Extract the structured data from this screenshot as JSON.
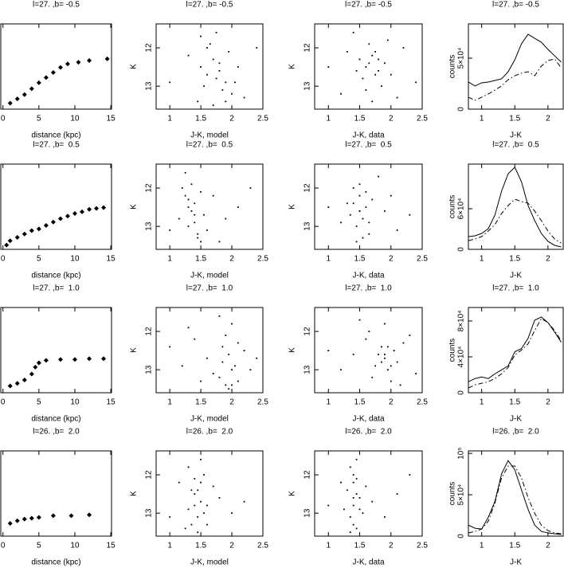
{
  "chart_data": [
    {
      "type": "scatter",
      "marker": "diamond",
      "title": "l=27. ,b= -0.5",
      "xlabel": "distance (kpc)",
      "xlim": [
        -0.3,
        15.1
      ],
      "xticks": [
        0,
        5,
        10,
        15
      ],
      "ylim": [
        0,
        1
      ],
      "x": [
        1,
        2,
        3,
        4,
        5,
        6,
        7,
        8,
        9,
        10.5,
        12,
        14.5
      ],
      "values": [
        0.07,
        0.12,
        0.17,
        0.24,
        0.31,
        0.37,
        0.43,
        0.49,
        0.53,
        0.55,
        0.57,
        0.59
      ]
    },
    {
      "type": "scatter",
      "marker": "point",
      "title": "l=27. ,b= -0.5",
      "xlabel": "J-K, model",
      "ylabel": "K",
      "xlim": [
        0.78,
        2.5
      ],
      "xticks": [
        1,
        1.5,
        2,
        2.5
      ],
      "ylim": [
        11.375,
        13.6
      ],
      "y_inverted": true,
      "yticks": [
        12,
        13
      ],
      "x": [
        1.5,
        1.6,
        1.7,
        1.8,
        1.9,
        2.0,
        1.45,
        1.65,
        1.75,
        1.85,
        2.1,
        1.3,
        1.55,
        1.95,
        2.2,
        1.7,
        1.8,
        1.6,
        1.9,
        1.0,
        2.4,
        1.75,
        1.5,
        2.05
      ],
      "values": [
        11.7,
        12.0,
        12.3,
        12.6,
        12.9,
        13.2,
        13.4,
        11.9,
        12.8,
        13.1,
        12.5,
        12.2,
        13.0,
        12.1,
        13.3,
        13.5,
        12.4,
        12.7,
        13.4,
        12.9,
        12.0,
        11.6,
        12.5,
        12.9
      ]
    },
    {
      "type": "scatter",
      "marker": "point",
      "title": "l=27. ,b= -0.5",
      "xlabel": "J-K, data",
      "ylabel": "K",
      "xlim": [
        0.78,
        2.5
      ],
      "xticks": [
        1,
        1.5,
        2,
        2.5
      ],
      "ylim": [
        11.375,
        13.6
      ],
      "y_inverted": true,
      "yticks": [
        12,
        13
      ],
      "x": [
        1.5,
        1.6,
        1.7,
        1.8,
        1.9,
        1.55,
        1.65,
        1.75,
        1.85,
        2.0,
        1.2,
        1.4,
        2.2,
        1.7,
        1.6,
        1.8,
        1.0,
        2.4,
        1.95,
        1.45,
        1.75,
        1.65,
        2.1,
        1.3
      ],
      "values": [
        12.3,
        12.5,
        12.2,
        12.6,
        12.4,
        12.8,
        11.9,
        12.1,
        13.0,
        12.7,
        13.2,
        11.6,
        12.0,
        13.4,
        13.1,
        12.3,
        12.5,
        12.9,
        11.8,
        12.6,
        12.7,
        12.4,
        13.3,
        12.1
      ]
    },
    {
      "type": "line",
      "title": "l=27. ,b= -0.5",
      "xlabel": "J-K",
      "ylabel": "counts",
      "xlim": [
        0.8,
        2.23
      ],
      "xticks": [
        1,
        1.5,
        2
      ],
      "ylim": [
        0,
        83600
      ],
      "yticks": [
        0,
        {
          "value": 50000,
          "label": "5×10⁴"
        }
      ],
      "x": [
        0.8,
        0.9,
        1.0,
        1.1,
        1.2,
        1.3,
        1.4,
        1.5,
        1.6,
        1.7,
        1.8,
        1.9,
        2.0,
        2.1,
        2.2
      ],
      "series": [
        {
          "style": "solid",
          "color": "#000000",
          "values": [
            26600,
            22700,
            25800,
            26600,
            28100,
            29700,
            36700,
            48400,
            64100,
            73400,
            69500,
            65600,
            58600,
            52300,
            46100
          ]
        },
        {
          "style": "dashdot",
          "color": "#000000",
          "values": [
            11700,
            8600,
            11700,
            14800,
            18800,
            22700,
            28900,
            32800,
            35200,
            36700,
            32800,
            42200,
            47700,
            49200,
            40600
          ]
        }
      ]
    },
    {
      "type": "scatter",
      "marker": "diamond",
      "title": "l=27. ,b=  0.5",
      "xlabel": "distance (kpc)",
      "xlim": [
        -0.3,
        15.1
      ],
      "xticks": [
        0,
        5,
        10,
        15
      ],
      "ylim": [
        0,
        1
      ],
      "x": [
        0.5,
        1,
        2,
        3,
        4,
        5,
        6,
        7,
        8,
        9,
        10,
        11,
        12,
        13,
        14
      ],
      "values": [
        0.05,
        0.1,
        0.14,
        0.18,
        0.22,
        0.24,
        0.28,
        0.32,
        0.36,
        0.39,
        0.42,
        0.44,
        0.47,
        0.48,
        0.49
      ]
    },
    {
      "type": "scatter",
      "marker": "point",
      "title": "l=27. ,b=  0.5",
      "xlabel": "J-K, model",
      "ylabel": "K",
      "xlim": [
        0.78,
        2.5
      ],
      "xticks": [
        1,
        1.5,
        2,
        2.5
      ],
      "ylim": [
        11.375,
        13.6
      ],
      "y_inverted": true,
      "yticks": [
        12,
        13
      ],
      "x": [
        1.2,
        1.3,
        1.35,
        1.4,
        1.45,
        1.5,
        1.25,
        1.3,
        1.4,
        1.55,
        1.6,
        1.7,
        1.9,
        2.1,
        1.15,
        1.35,
        1.45,
        1.3,
        1.5,
        1.8,
        2.3,
        1.0,
        1.4,
        1.25
      ],
      "values": [
        12.0,
        12.3,
        12.6,
        12.9,
        13.2,
        13.4,
        11.6,
        13.0,
        12.4,
        12.7,
        13.1,
        12.2,
        12.8,
        12.5,
        12.8,
        11.9,
        13.3,
        12.5,
        12.1,
        13.4,
        12.0,
        13.1,
        12.7,
        12.2
      ]
    },
    {
      "type": "scatter",
      "marker": "point",
      "title": "l=27. ,b=  0.5",
      "xlabel": "J-K, data",
      "ylabel": "K",
      "xlim": [
        0.78,
        2.5
      ],
      "xticks": [
        1,
        1.5,
        2,
        2.5
      ],
      "ylim": [
        11.375,
        13.6
      ],
      "y_inverted": true,
      "yticks": [
        12,
        13
      ],
      "x": [
        1.4,
        1.5,
        1.55,
        1.6,
        1.45,
        1.5,
        1.65,
        1.35,
        1.7,
        1.9,
        2.1,
        1.2,
        1.55,
        1.5,
        1.6,
        1.0,
        2.3,
        1.45,
        1.8,
        1.4,
        1.5,
        1.65,
        2.0,
        1.3
      ],
      "values": [
        12.4,
        12.6,
        12.8,
        12.5,
        13.0,
        12.2,
        12.9,
        12.7,
        12.3,
        12.6,
        13.1,
        12.9,
        13.3,
        11.9,
        12.1,
        12.5,
        12.7,
        13.4,
        11.7,
        12.0,
        12.6,
        13.2,
        12.2,
        12.4
      ]
    },
    {
      "type": "line",
      "title": "l=27. ,b=  0.5",
      "xlabel": "J-K",
      "ylabel": "counts",
      "xlim": [
        0.8,
        2.23
      ],
      "xticks": [
        1,
        1.5,
        2
      ],
      "ylim": [
        0,
        125900
      ],
      "yticks": [
        0,
        {
          "value": 60000,
          "label": "6×10⁴"
        }
      ],
      "x": [
        0.8,
        0.9,
        1.0,
        1.1,
        1.2,
        1.3,
        1.4,
        1.5,
        1.6,
        1.7,
        1.8,
        1.9,
        2.0,
        2.1,
        2.2
      ],
      "series": [
        {
          "style": "solid",
          "color": "#000000",
          "values": [
            18800,
            20000,
            23500,
            30600,
            50600,
            85900,
            111800,
            121200,
            100000,
            64700,
            42400,
            23500,
            11800,
            5900,
            3500
          ]
        },
        {
          "style": "dashdot",
          "color": "#000000",
          "values": [
            12900,
            15300,
            18800,
            27100,
            36500,
            52900,
            64700,
            74100,
            70600,
            68200,
            56500,
            42400,
            27100,
            15300,
            9400
          ]
        }
      ]
    },
    {
      "type": "scatter",
      "marker": "diamond",
      "title": "l=27. ,b=  1.0",
      "xlabel": "distance (kpc)",
      "xlim": [
        -0.3,
        15.1
      ],
      "xticks": [
        0,
        5,
        10,
        15
      ],
      "ylim": [
        0,
        1
      ],
      "x": [
        1,
        2,
        3,
        4,
        4.5,
        5,
        6,
        8,
        10,
        12,
        14
      ],
      "values": [
        0.08,
        0.11,
        0.15,
        0.22,
        0.3,
        0.35,
        0.38,
        0.39,
        0.39,
        0.4,
        0.4
      ]
    },
    {
      "type": "scatter",
      "marker": "point",
      "title": "l=27. ,b=  1.0",
      "xlabel": "J-K, model",
      "ylabel": "K",
      "xlim": [
        0.78,
        2.5
      ],
      "xticks": [
        1,
        1.5,
        2,
        2.5
      ],
      "ylim": [
        11.375,
        13.6
      ],
      "y_inverted": true,
      "yticks": [
        12,
        13
      ],
      "x": [
        1.8,
        1.9,
        2.0,
        2.1,
        1.85,
        1.95,
        2.05,
        1.7,
        2.2,
        1.6,
        1.4,
        1.2,
        1.0,
        2.3,
        1.9,
        2.0,
        1.8,
        1.5,
        2.1,
        1.95,
        1.85,
        2.4,
        1.3,
        2.0
      ],
      "values": [
        13.2,
        13.4,
        13.0,
        13.3,
        12.8,
        12.6,
        12.9,
        13.1,
        12.5,
        12.7,
        12.2,
        12.9,
        12.4,
        13.0,
        12.1,
        11.8,
        11.6,
        13.3,
        12.3,
        13.5,
        12.4,
        12.7,
        11.9,
        13.4
      ]
    },
    {
      "type": "scatter",
      "marker": "point",
      "title": "l=27. ,b=  1.0",
      "xlabel": "J-K, data",
      "ylabel": "K",
      "xlim": [
        0.78,
        2.5
      ],
      "xticks": [
        1,
        1.5,
        2,
        2.5
      ],
      "ylim": [
        11.375,
        13.6
      ],
      "y_inverted": true,
      "yticks": [
        12,
        13
      ],
      "x": [
        1.8,
        1.9,
        2.0,
        1.85,
        1.95,
        2.05,
        2.1,
        1.75,
        2.2,
        1.7,
        1.6,
        1.4,
        1.2,
        2.3,
        1.9,
        2.0,
        1.5,
        1.0,
        2.4,
        1.95,
        1.85,
        1.65,
        2.15,
        1.9
      ],
      "values": [
        12.6,
        12.7,
        12.9,
        12.4,
        13.0,
        12.5,
        12.8,
        12.9,
        12.3,
        13.2,
        12.2,
        12.6,
        13.0,
        12.1,
        11.8,
        13.3,
        11.7,
        12.5,
        13.1,
        12.4,
        12.8,
        12.0,
        13.4,
        12.6
      ]
    },
    {
      "type": "line",
      "title": "l=27. ,b=  1.0",
      "xlabel": "J-K",
      "ylabel": "counts",
      "xlim": [
        0.8,
        2.23
      ],
      "xticks": [
        1,
        1.5,
        2
      ],
      "ylim": [
        0,
        95000
      ],
      "yticks": [
        0,
        {
          "value": 40000,
          "label": "4×10⁴"
        },
        {
          "value": 80000,
          "label": "8×10⁴"
        }
      ],
      "x": [
        0.8,
        0.9,
        1.0,
        1.1,
        1.2,
        1.3,
        1.4,
        1.5,
        1.6,
        1.7,
        1.8,
        1.9,
        2.0,
        2.1,
        2.2
      ],
      "series": [
        {
          "style": "solid",
          "color": "#000000",
          "values": [
            12300,
            15800,
            17600,
            15800,
            21100,
            25500,
            29900,
            45700,
            49200,
            60700,
            80900,
            84400,
            78200,
            67700,
            56300
          ]
        },
        {
          "style": "dashdot",
          "color": "#000000",
          "values": [
            5300,
            8800,
            10500,
            12300,
            15800,
            21100,
            28100,
            42200,
            47500,
            54500,
            69400,
            82600,
            78200,
            69400,
            58000
          ]
        }
      ]
    },
    {
      "type": "scatter",
      "marker": "diamond",
      "title": "l=26. ,b=  2.0",
      "xlabel": "distance (kpc)",
      "xlim": [
        -0.3,
        15.1
      ],
      "xticks": [
        0,
        5,
        10,
        15
      ],
      "ylim": [
        0,
        1
      ],
      "x": [
        1,
        2,
        3,
        4,
        5,
        7,
        9.5,
        12
      ],
      "values": [
        0.15,
        0.18,
        0.2,
        0.21,
        0.22,
        0.24,
        0.24,
        0.25
      ]
    },
    {
      "type": "scatter",
      "marker": "point",
      "title": "l=26. ,b=  2.0",
      "xlabel": "J-K, model",
      "ylabel": "K",
      "xlim": [
        0.78,
        2.5
      ],
      "xticks": [
        1,
        1.5,
        2,
        2.5
      ],
      "ylim": [
        11.375,
        13.6
      ],
      "y_inverted": true,
      "yticks": [
        12,
        13
      ],
      "x": [
        1.3,
        1.4,
        1.45,
        1.5,
        1.55,
        1.35,
        1.45,
        1.5,
        1.6,
        1.4,
        1.3,
        1.25,
        1.7,
        1.5,
        1.45,
        1.8,
        2.0,
        1.15,
        1.55,
        1.4,
        1.35,
        1.6,
        2.2,
        1.0
      ],
      "values": [
        11.8,
        12.1,
        12.4,
        12.7,
        13.0,
        13.3,
        13.1,
        12.2,
        12.8,
        12.5,
        12.9,
        13.4,
        12.3,
        11.6,
        13.5,
        12.6,
        13.0,
        12.2,
        12.0,
        12.8,
        12.4,
        13.3,
        12.7,
        13.1
      ]
    },
    {
      "type": "scatter",
      "marker": "point",
      "title": "l=26. ,b=  2.0",
      "xlabel": "J-K, data",
      "ylabel": "K",
      "xlim": [
        0.78,
        2.5
      ],
      "xticks": [
        1,
        1.5,
        2,
        2.5
      ],
      "ylim": [
        11.375,
        13.6
      ],
      "y_inverted": true,
      "yticks": [
        12,
        13
      ],
      "x": [
        1.35,
        1.4,
        1.45,
        1.4,
        1.35,
        1.45,
        1.4,
        1.5,
        1.3,
        1.55,
        1.6,
        1.25,
        1.4,
        1.45,
        1.7,
        1.9,
        2.1,
        1.2,
        1.5,
        1.4,
        1.35,
        1.45,
        1.0,
        2.3
      ],
      "values": [
        11.8,
        12.2,
        12.5,
        12.8,
        13.1,
        13.4,
        12.0,
        12.6,
        12.4,
        13.0,
        12.3,
        12.9,
        13.3,
        11.6,
        12.7,
        13.1,
        12.5,
        12.2,
        12.9,
        12.6,
        13.5,
        12.1,
        12.8,
        12.0
      ]
    },
    {
      "type": "line",
      "title": "l=26. ,b=  2.0",
      "xlabel": "J-K",
      "ylabel": "counts",
      "xlim": [
        0.8,
        2.23
      ],
      "xticks": [
        1,
        1.5,
        2
      ],
      "ylim": [
        0,
        103000
      ],
      "yticks": [
        0,
        {
          "value": 50000,
          "label": "5×10⁴"
        },
        {
          "value": 100000,
          "label": "10⁵"
        }
      ],
      "x": [
        0.8,
        0.9,
        1.0,
        1.1,
        1.2,
        1.3,
        1.4,
        1.5,
        1.6,
        1.7,
        1.8,
        1.9,
        2.0,
        2.1,
        2.2
      ],
      "series": [
        {
          "style": "solid",
          "color": "#000000",
          "values": [
            13300,
            9500,
            8600,
            22800,
            41900,
            75200,
            91400,
            80000,
            56200,
            32400,
            13300,
            5700,
            3800,
            2900,
            1900
          ]
        },
        {
          "style": "dashdot",
          "color": "#000000",
          "values": [
            3800,
            5700,
            8600,
            18100,
            40000,
            70400,
            84700,
            84700,
            70400,
            46600,
            27600,
            13300,
            6700,
            3800,
            2900
          ]
        }
      ]
    }
  ]
}
